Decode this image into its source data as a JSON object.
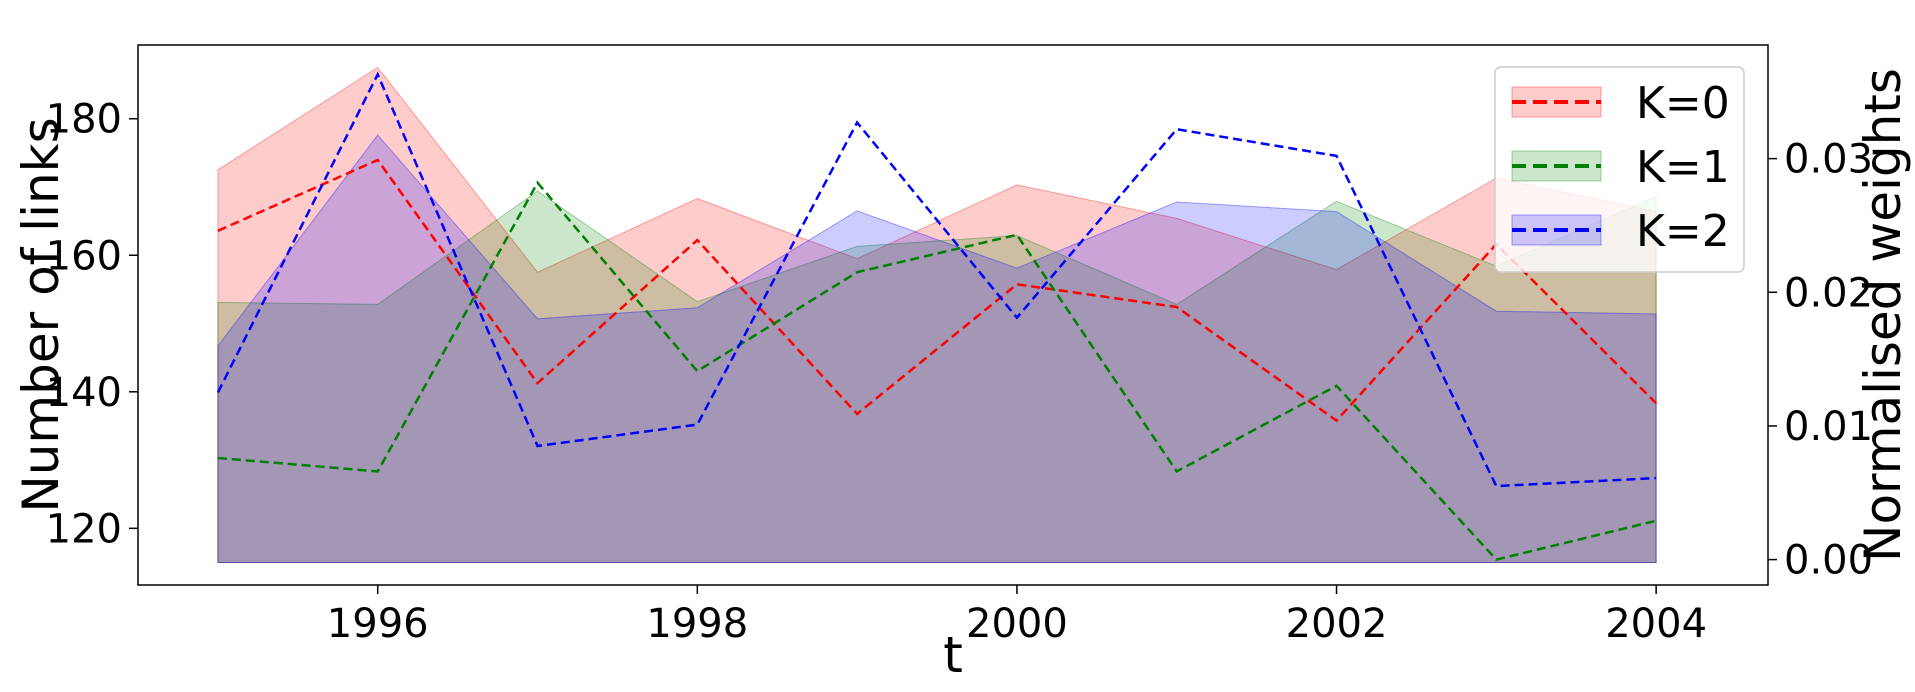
{
  "chart_data": {
    "type": "area",
    "title": "",
    "xlabel": "t",
    "ylabel": "Number of links",
    "y2label": "Normalised weights",
    "x": [
      1995,
      1996,
      1997,
      1998,
      1999,
      2000,
      2001,
      2002,
      2003,
      2004
    ],
    "xlim": [
      1994.5,
      2004.7
    ],
    "ylim": [
      111.7,
      190.8
    ],
    "y2lim": [
      -0.0019,
      0.0385
    ],
    "xticks": [
      1996,
      1998,
      2000,
      2002,
      2004
    ],
    "yticks": [
      120,
      140,
      160,
      180
    ],
    "y2ticks": [
      0.0,
      0.01,
      0.02,
      0.03
    ],
    "y2tick_labels": [
      "0.00",
      "0.01",
      "0.02",
      "0.03"
    ],
    "grid": false,
    "legend": "top-right",
    "series": [
      {
        "name": "K=0",
        "color": "#ff0000",
        "band_upper": [
          172.5,
          187.5,
          157.5,
          168.3,
          159.5,
          170.3,
          165.4,
          157.9,
          171.3,
          166.4
        ],
        "band_lower": [
          146.7,
          153.0,
          161.3,
          153.2,
          160.6,
          162.7,
          152.8,
          157.9,
          159.9,
          151.4
        ],
        "weights": [
          0.0246,
          0.0299,
          0.0132,
          0.0239,
          0.0109,
          0.0206,
          0.0189,
          0.0104,
          0.0236,
          0.0117
        ]
      },
      {
        "name": "K=1",
        "color": "#008000",
        "band_upper": [
          153.1,
          152.8,
          169.4,
          153.2,
          161.3,
          162.9,
          152.8,
          167.9,
          158.4,
          168.6
        ],
        "band_lower": [
          153.1,
          152.8,
          150.7,
          152.3,
          161.3,
          158.1,
          167.8,
          166.4,
          151.8,
          151.4
        ],
        "weights": [
          0.0076,
          0.0066,
          0.0282,
          0.0141,
          0.0215,
          0.0243,
          0.0066,
          0.013,
          0.0,
          0.0029
        ]
      },
      {
        "name": "K=2",
        "color": "#0000ff",
        "band_upper": [
          146.7,
          177.6,
          150.7,
          152.3,
          166.5,
          158.1,
          167.8,
          166.4,
          151.8,
          151.4
        ],
        "band_lower": [
          146.7,
          177.6,
          150.7,
          152.3,
          166.5,
          158.1,
          167.8,
          166.4,
          151.8,
          151.4
        ],
        "weights": [
          0.0125,
          0.0363,
          0.0085,
          0.0101,
          0.0327,
          0.0181,
          0.0322,
          0.0302,
          0.0055,
          0.0061
        ]
      }
    ],
    "band_floor": 115.0
  }
}
